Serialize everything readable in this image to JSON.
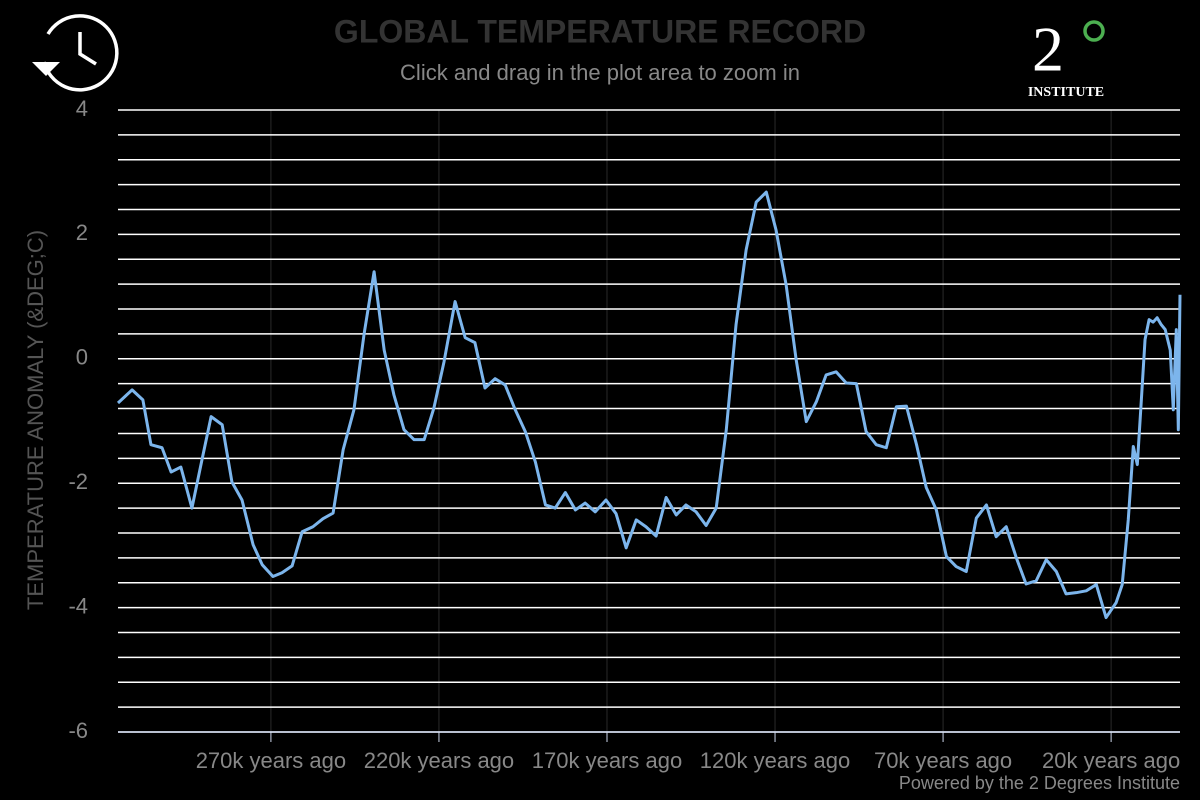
{
  "chart_data": {
    "type": "line",
    "title": "GLOBAL TEMPERATURE RECORD",
    "subtitle": "Click and drag in the plot area to zoom in",
    "ylabel": "TEMPERATURE ANOMALY (&DEG;C)",
    "color": "#7cb5ec",
    "x": [
      315.5,
      311.3,
      308.1,
      305.7,
      302.4,
      299.7,
      296.8,
      293.5,
      290.5,
      287.8,
      284.5,
      281.6,
      278.6,
      275.3,
      272.6,
      269.4,
      266.7,
      263.7,
      260.7,
      257.5,
      254.5,
      251.5,
      248.5,
      245.3,
      242.3,
      239.3,
      236.3,
      233.4,
      230.4,
      227.4,
      224.4,
      221.5,
      218.5,
      215.2,
      212.2,
      209.3,
      206.3,
      203.3,
      200.3,
      197.3,
      194.3,
      191.3,
      188.3,
      185.4,
      182.4,
      179.4,
      176.5,
      173.5,
      170.3,
      167.3,
      164.3,
      161.3,
      158.4,
      155.4,
      152.4,
      149.4,
      146.5,
      143.5,
      140.5,
      137.5,
      134.5,
      131.6,
      128.6,
      125.6,
      122.6,
      119.7,
      116.7,
      113.7,
      110.7,
      107.7,
      104.8,
      101.8,
      98.8,
      95.8,
      92.9,
      89.9,
      86.9,
      83.9,
      80.9,
      77.9,
      75.0,
      72.0,
      69.0,
      66.1,
      63.1,
      60.1,
      57.1,
      54.2,
      51.2,
      48.2,
      45.3,
      42.3,
      39.3,
      36.3,
      33.4,
      30.4,
      27.4,
      24.4,
      21.5,
      18.5,
      16.7,
      14.9,
      13.4,
      12.2,
      11.0,
      9.9,
      8.7,
      7.5,
      6.3,
      5.1,
      3.9,
      2.4,
      1.5,
      0.6,
      0.0,
      -0.5
    ],
    "values": [
      -0.71,
      -0.5,
      -0.66,
      -1.38,
      -1.43,
      -1.82,
      -1.74,
      -2.4,
      -1.62,
      -0.93,
      -1.06,
      -1.98,
      -2.27,
      -2.99,
      -3.31,
      -3.5,
      -3.44,
      -3.33,
      -2.78,
      -2.7,
      -2.57,
      -2.48,
      -1.46,
      -0.82,
      0.39,
      1.4,
      0.14,
      -0.58,
      -1.14,
      -1.3,
      -1.3,
      -0.79,
      -0.05,
      0.92,
      0.34,
      0.26,
      -0.47,
      -0.32,
      -0.42,
      -0.82,
      -1.17,
      -1.66,
      -2.35,
      -2.4,
      -2.15,
      -2.43,
      -2.32,
      -2.46,
      -2.27,
      -2.49,
      -3.04,
      -2.59,
      -2.7,
      -2.85,
      -2.23,
      -2.51,
      -2.35,
      -2.46,
      -2.68,
      -2.4,
      -1.14,
      0.55,
      1.75,
      2.52,
      2.68,
      2.07,
      1.19,
      -0.02,
      -1.01,
      -0.69,
      -0.26,
      -0.21,
      -0.39,
      -0.4,
      -1.17,
      -1.38,
      -1.43,
      -0.77,
      -0.76,
      -1.38,
      -2.07,
      -2.43,
      -3.18,
      -3.34,
      -3.42,
      -2.56,
      -2.35,
      -2.86,
      -2.7,
      -3.2,
      -3.62,
      -3.57,
      -3.23,
      -3.42,
      -3.78,
      -3.76,
      -3.73,
      -3.63,
      -4.16,
      -3.92,
      -3.63,
      -2.59,
      -1.41,
      -1.7,
      -0.66,
      0.31,
      0.63,
      0.59,
      0.66,
      0.55,
      0.47,
      0.14,
      -0.82,
      0.47,
      -1.14,
      1.03
    ],
    "xlim": [
      315.5,
      -0.5
    ],
    "xticks": [
      {
        "value": 270,
        "label": "270k years ago"
      },
      {
        "value": 220,
        "label": "220k years ago"
      },
      {
        "value": 170,
        "label": "170k years ago"
      },
      {
        "value": 120,
        "label": "120k years ago"
      },
      {
        "value": 70,
        "label": "70k years ago"
      },
      {
        "value": 20,
        "label": "20k years ago"
      }
    ],
    "ylim": [
      -6,
      4
    ],
    "yticks": [
      4,
      2,
      0,
      -2,
      -4,
      -6
    ],
    "ygrid": [
      4,
      3.6,
      3.2,
      2.8,
      2.4,
      2,
      1.6,
      1.2,
      0.8,
      0.4,
      0,
      -0.4,
      -0.8,
      -1.2,
      -1.6,
      -2,
      -2.4,
      -2.8,
      -3.2,
      -3.6,
      -4,
      -4.4,
      -4.8,
      -5.2,
      -5.6,
      -6
    ],
    "grid": true
  },
  "logo": {
    "number": "2",
    "caption": "INSTITUTE"
  },
  "footer": "Powered by the 2 Degrees Institute"
}
